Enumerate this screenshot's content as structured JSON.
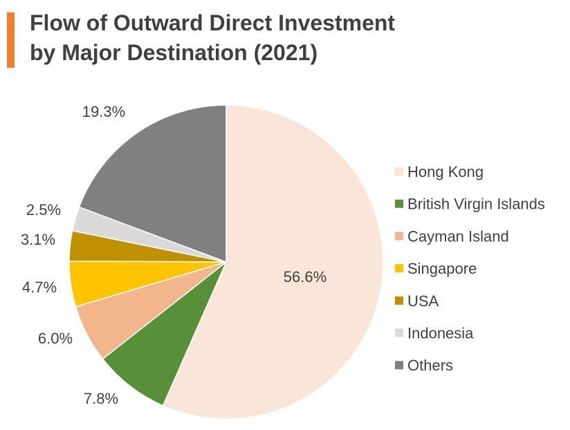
{
  "title": {
    "line1": "Flow of Outward Direct Investment",
    "line2": "by Major Destination (2021)"
  },
  "colors": {
    "accent": "#f07f2e",
    "text": "#404040"
  },
  "chart_data": {
    "type": "pie",
    "title": "Flow of Outward Direct Investment by Major Destination (2021)",
    "legend_position": "right",
    "slices": [
      {
        "name": "Hong Kong",
        "value": 56.6,
        "label": "56.6%",
        "color": "#fae5d9"
      },
      {
        "name": "British Virgin Islands",
        "value": 7.8,
        "label": "7.8%",
        "color": "#588f39"
      },
      {
        "name": "Cayman Island",
        "value": 6.0,
        "label": "6.0%",
        "color": "#f3b58c"
      },
      {
        "name": "Singapore",
        "value": 4.7,
        "label": "4.7%",
        "color": "#fec402"
      },
      {
        "name": "USA",
        "value": 3.1,
        "label": "3.1%",
        "color": "#bf9000"
      },
      {
        "name": "Indonesia",
        "value": 2.5,
        "label": "2.5%",
        "color": "#d9d9d9"
      },
      {
        "name": "Others",
        "value": 19.3,
        "label": "19.3%",
        "color": "#808080"
      }
    ]
  }
}
